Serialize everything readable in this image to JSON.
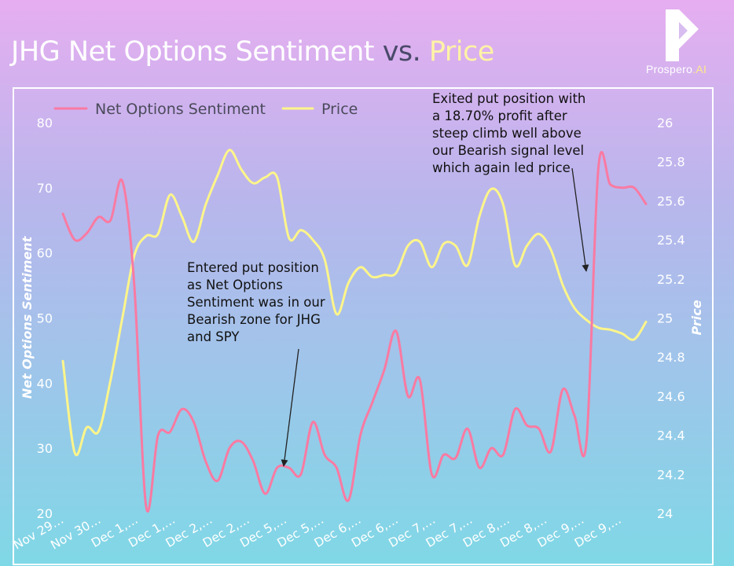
{
  "title": {
    "part1": "JHG Net Options Sentiment",
    "part2": "vs.",
    "part3": "Price"
  },
  "brand": {
    "name": "Prospero",
    "suffix": ".AI"
  },
  "annotations": {
    "entry": [
      "Entered put position",
      "as Net Options",
      "Sentiment was in our",
      "Bearish zone for JHG",
      "and SPY"
    ],
    "exit": [
      "Exited put position with",
      "a 18.70% profit after",
      "steep climb well above",
      "our Bearish signal level",
      "which again led price"
    ]
  },
  "colors": {
    "sentiment": "#f97aa2",
    "price": "#fdf58a",
    "axis_text": "#ffffff",
    "legend_text": "#4a4a5a"
  },
  "chart_data": {
    "type": "line",
    "xlabel": "",
    "ylabel": "Net Options Sentiment",
    "y2label": "Price",
    "ylim": [
      20,
      80
    ],
    "yticks": [
      20,
      30,
      40,
      50,
      60,
      70,
      80
    ],
    "y2lim": [
      24,
      26
    ],
    "y2ticks": [
      24,
      24.2,
      24.4,
      24.6,
      24.8,
      25,
      25.2,
      25.4,
      25.6,
      25.8,
      26
    ],
    "y2ticklabels": [
      "24",
      "24.2",
      "24.4",
      "24.6",
      "24.8",
      "25",
      "25.2",
      "25.4",
      "25.6",
      "25.8",
      "26"
    ],
    "x_ticks": [
      "Nov 29…",
      "Nov 30…",
      "Dec 1,…",
      "Dec 1,…",
      "Dec 2,…",
      "Dec 2,…",
      "Dec 5,…",
      "Dec 5,…",
      "Dec 6,…",
      "Dec 6,…",
      "Dec 7,…",
      "Dec 7,…",
      "Dec 8,…",
      "Dec 8,…",
      "Dec 9,…",
      "Dec 9,…"
    ],
    "legend_position": "top-left",
    "grid": false,
    "series": [
      {
        "name": "Net Options Sentiment",
        "axis": "left",
        "values": [
          66,
          62,
          63,
          65.5,
          65,
          71,
          55,
          21,
          32,
          32.5,
          36,
          34,
          28,
          25,
          30,
          31,
          28,
          23,
          27,
          27,
          26,
          34,
          29,
          27,
          22,
          32,
          37,
          42,
          48,
          38,
          40.5,
          26,
          29,
          28.5,
          33,
          27,
          30,
          29,
          36,
          33.5,
          33,
          29.5,
          39,
          35,
          31,
          73,
          70.5,
          70,
          70,
          67.5
        ]
      },
      {
        "name": "Price",
        "axis": "right",
        "values": [
          24.78,
          24.31,
          24.44,
          24.42,
          24.68,
          25.0,
          25.32,
          25.42,
          25.43,
          25.63,
          25.52,
          25.39,
          25.58,
          25.73,
          25.86,
          25.76,
          25.69,
          25.72,
          25.72,
          25.41,
          25.45,
          25.4,
          25.3,
          25.02,
          25.18,
          25.26,
          25.21,
          25.22,
          25.23,
          25.37,
          25.39,
          25.26,
          25.38,
          25.37,
          25.27,
          25.52,
          25.66,
          25.58,
          25.27,
          25.37,
          25.43,
          25.35,
          25.17,
          25.05,
          24.99,
          24.95,
          24.94,
          24.92,
          24.89,
          24.98
        ]
      }
    ]
  }
}
